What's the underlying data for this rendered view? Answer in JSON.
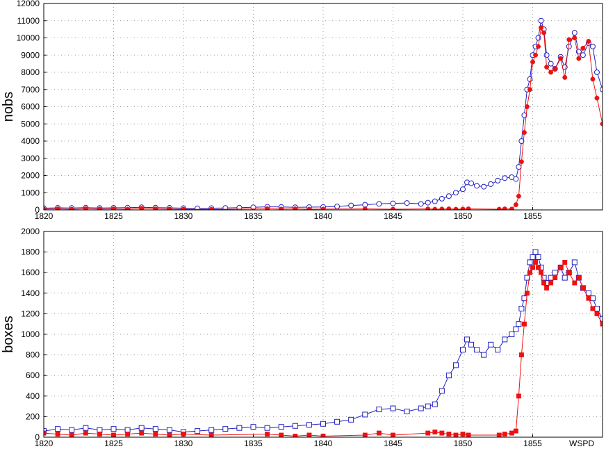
{
  "colors": {
    "blue": "#2020c0",
    "red": "#ee1111",
    "grid": "#9a9a9a"
  },
  "chart_data": [
    {
      "type": "scatter",
      "ylabel": "nobs",
      "xlim": [
        1820,
        1860
      ],
      "ylim": [
        0,
        12000
      ],
      "grid": true,
      "x_ticks": [
        1820,
        1825,
        1830,
        1835,
        1840,
        1845,
        1850,
        1855
      ],
      "y_ticks": [
        0,
        1000,
        2000,
        3000,
        4000,
        5000,
        6000,
        7000,
        8000,
        9000,
        10000,
        11000,
        12000
      ],
      "series": [
        {
          "color": "#2020c0",
          "marker": "open-circle",
          "line": true,
          "x": [
            1820,
            1821,
            1822,
            1823,
            1824,
            1825,
            1826,
            1827,
            1828,
            1829,
            1830,
            1831,
            1832,
            1833,
            1834,
            1835,
            1836,
            1837,
            1838,
            1839,
            1840,
            1841,
            1842,
            1843,
            1844,
            1845,
            1846,
            1847,
            1847.5,
            1848,
            1848.5,
            1849,
            1849.5,
            1850,
            1850.3,
            1850.6,
            1851,
            1851.5,
            1852,
            1852.5,
            1853,
            1853.5,
            1853.8,
            1854,
            1854.2,
            1854.4,
            1854.6,
            1854.8,
            1855,
            1855.2,
            1855.4,
            1855.6,
            1855.8,
            1856,
            1856.3,
            1856.6,
            1857,
            1857.3,
            1857.6,
            1858,
            1858.3,
            1858.6,
            1859,
            1859.3,
            1859.6,
            1860
          ],
          "y": [
            100,
            120,
            110,
            130,
            110,
            120,
            130,
            150,
            130,
            120,
            100,
            90,
            100,
            110,
            130,
            150,
            180,
            170,
            150,
            160,
            170,
            200,
            260,
            300,
            350,
            380,
            400,
            350,
            420,
            500,
            650,
            800,
            1000,
            1200,
            1600,
            1550,
            1400,
            1350,
            1500,
            1700,
            1850,
            1900,
            1800,
            2500,
            4000,
            5500,
            7000,
            7600,
            9000,
            9500,
            10000,
            11000,
            10500,
            9000,
            8500,
            8200,
            8900,
            8300,
            9500,
            10300,
            9200,
            9000,
            9700,
            9500,
            8000,
            7000
          ]
        },
        {
          "color": "#ee1111",
          "marker": "filled-circle",
          "line": true,
          "x": [
            1820,
            1821,
            1822,
            1823,
            1824,
            1825,
            1826,
            1827,
            1828,
            1829,
            1830,
            1832,
            1836,
            1837,
            1838,
            1839,
            1840,
            1843,
            1845,
            1847.5,
            1848,
            1848.5,
            1849,
            1849.5,
            1850,
            1850.4,
            1852.6,
            1853,
            1853.5,
            1853.8,
            1854,
            1854.2,
            1854.4,
            1854.6,
            1854.8,
            1855,
            1855.2,
            1855.4,
            1855.6,
            1855.8,
            1856,
            1856.3,
            1856.6,
            1857,
            1857.3,
            1857.6,
            1858,
            1858.3,
            1858.6,
            1859,
            1859.3,
            1859.6,
            1860
          ],
          "y": [
            50,
            60,
            40,
            70,
            50,
            60,
            40,
            90,
            60,
            50,
            40,
            30,
            70,
            50,
            60,
            40,
            50,
            60,
            40,
            60,
            40,
            50,
            60,
            40,
            50,
            60,
            40,
            60,
            50,
            300,
            800,
            2800,
            4500,
            6000,
            7000,
            8600,
            9000,
            9500,
            10600,
            10300,
            8300,
            8000,
            8200,
            8800,
            7700,
            9900,
            10000,
            8800,
            9400,
            9800,
            7600,
            6500,
            5000
          ]
        }
      ]
    },
    {
      "type": "scatter",
      "ylabel": "boxes",
      "xlim": [
        1820,
        1860
      ],
      "ylim": [
        0,
        2000
      ],
      "grid": true,
      "x_ticks": [
        1820,
        1825,
        1830,
        1835,
        1840,
        1845,
        1850,
        1855
      ],
      "y_ticks": [
        0,
        200,
        400,
        600,
        800,
        1000,
        1200,
        1400,
        1600,
        1800,
        2000
      ],
      "annotation": "WSPD",
      "series": [
        {
          "color": "#2020c0",
          "marker": "open-square",
          "line": true,
          "x": [
            1820,
            1821,
            1822,
            1823,
            1824,
            1825,
            1826,
            1827,
            1828,
            1829,
            1830,
            1831,
            1832,
            1833,
            1834,
            1835,
            1836,
            1837,
            1838,
            1839,
            1840,
            1841,
            1842,
            1843,
            1844,
            1845,
            1846,
            1847,
            1847.5,
            1848,
            1848.5,
            1849,
            1849.5,
            1850,
            1850.3,
            1850.6,
            1851,
            1851.5,
            1852,
            1852.5,
            1853,
            1853.5,
            1853.8,
            1854,
            1854.2,
            1854.4,
            1854.6,
            1854.8,
            1855,
            1855.2,
            1855.4,
            1855.6,
            1855.8,
            1856,
            1856.3,
            1856.6,
            1857,
            1857.3,
            1857.6,
            1858,
            1858.3,
            1858.6,
            1859,
            1859.3,
            1859.6,
            1860
          ],
          "y": [
            60,
            80,
            70,
            90,
            70,
            80,
            70,
            90,
            80,
            70,
            50,
            60,
            70,
            80,
            90,
            100,
            90,
            100,
            110,
            120,
            130,
            150,
            170,
            220,
            270,
            280,
            250,
            280,
            300,
            320,
            450,
            600,
            700,
            850,
            950,
            900,
            850,
            800,
            900,
            850,
            950,
            1000,
            1050,
            1100,
            1250,
            1350,
            1550,
            1700,
            1750,
            1800,
            1750,
            1650,
            1550,
            1500,
            1550,
            1600,
            1650,
            1550,
            1600,
            1700,
            1550,
            1450,
            1400,
            1350,
            1250,
            1150
          ]
        },
        {
          "color": "#ee1111",
          "marker": "filled-square",
          "line": true,
          "x": [
            1820,
            1821,
            1822,
            1823,
            1824,
            1825,
            1826,
            1827,
            1828,
            1829,
            1830,
            1832,
            1836,
            1837,
            1838,
            1839,
            1840,
            1843,
            1844,
            1845,
            1847.5,
            1848,
            1848.5,
            1849,
            1849.5,
            1850,
            1850.4,
            1852.6,
            1853,
            1853.5,
            1853.8,
            1854,
            1854.2,
            1854.4,
            1854.6,
            1854.8,
            1855,
            1855.2,
            1855.4,
            1855.6,
            1855.8,
            1856,
            1856.3,
            1856.6,
            1857,
            1857.3,
            1857.6,
            1858,
            1858.3,
            1858.6,
            1859,
            1859.3,
            1859.6,
            1860
          ],
          "y": [
            40,
            30,
            20,
            40,
            30,
            20,
            30,
            40,
            30,
            20,
            30,
            20,
            30,
            20,
            10,
            20,
            10,
            20,
            40,
            20,
            40,
            50,
            40,
            30,
            20,
            30,
            20,
            20,
            30,
            40,
            60,
            400,
            800,
            1100,
            1400,
            1600,
            1650,
            1700,
            1650,
            1600,
            1500,
            1450,
            1500,
            1550,
            1650,
            1700,
            1600,
            1500,
            1550,
            1450,
            1350,
            1250,
            1200,
            1100
          ]
        }
      ]
    }
  ]
}
